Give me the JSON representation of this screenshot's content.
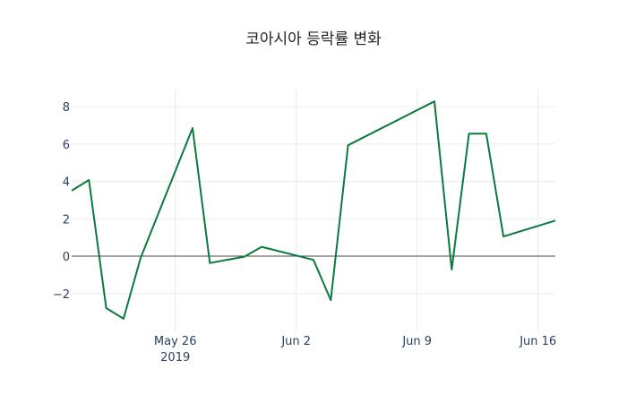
{
  "chart_data": {
    "type": "line",
    "title": "코아시아 등락률 변화",
    "xlabel": "",
    "ylabel": "",
    "line_color": "#0b7a3e",
    "x": [
      "2019-05-20",
      "2019-05-21",
      "2019-05-22",
      "2019-05-23",
      "2019-05-24",
      "2019-05-27",
      "2019-05-28",
      "2019-05-30",
      "2019-05-31",
      "2019-06-03",
      "2019-06-04",
      "2019-06-05",
      "2019-06-10",
      "2019-06-11",
      "2019-06-12",
      "2019-06-13",
      "2019-06-14",
      "2019-06-17"
    ],
    "series": [
      {
        "name": "등락률",
        "values": [
          3.5,
          4.07,
          -2.78,
          -3.35,
          -0.08,
          6.85,
          -0.37,
          -0.03,
          0.5,
          -0.2,
          -2.35,
          5.93,
          8.28,
          -0.72,
          6.55,
          6.55,
          1.05,
          1.9
        ]
      }
    ],
    "ylim": [
      -3.8,
      8.9
    ],
    "xlim": [
      "2019-05-20",
      "2019-06-17"
    ],
    "yticks": [
      -2,
      0,
      2,
      4,
      6,
      8
    ],
    "ytick_labels": [
      "−2",
      "0",
      "2",
      "4",
      "6",
      "8"
    ],
    "xticks": [
      "2019-05-26",
      "2019-06-02",
      "2019-06-09",
      "2019-06-16"
    ],
    "xtick_labels": [
      "May 26",
      "Jun 2",
      "Jun 9",
      "Jun 16"
    ],
    "xtick_sublabel": "2019",
    "grid": true,
    "legend": "none"
  }
}
